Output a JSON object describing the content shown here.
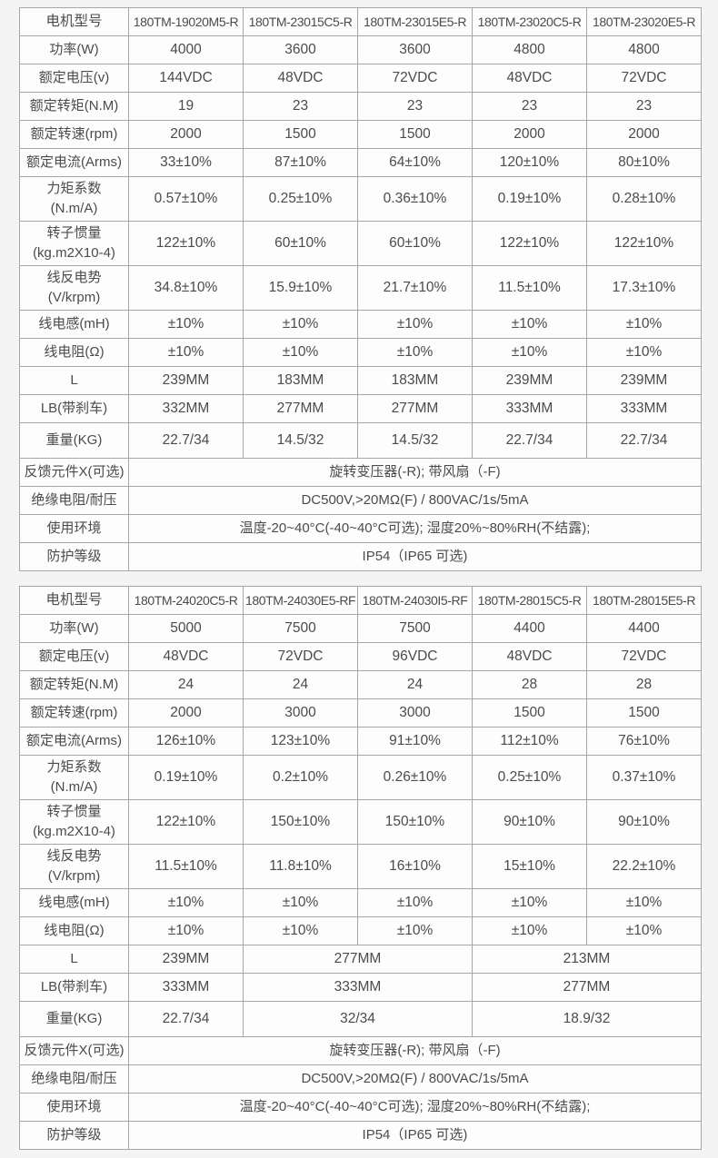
{
  "page": {
    "background_color": "#f4f4f5",
    "table_background_color": "#fdfdfd",
    "border_color": "#a6a6a6",
    "text_color": "#4b4b4b"
  },
  "tables": [
    {
      "header": {
        "label": "电机型号",
        "models": [
          "180TM-19020M5-R",
          "180TM-23015C5-R",
          "180TM-23015E5-R",
          "180TM-23020C5-R",
          "180TM-23020E5-R"
        ]
      },
      "rows": [
        {
          "label": "功率(W)",
          "cells": [
            "4000",
            "3600",
            "3600",
            "4800",
            "4800"
          ]
        },
        {
          "label": "额定电压(v)",
          "cells": [
            "144VDC",
            "48VDC",
            "72VDC",
            "48VDC",
            "72VDC"
          ]
        },
        {
          "label": "额定转矩(N.M)",
          "cells": [
            "19",
            "23",
            "23",
            "23",
            "23"
          ]
        },
        {
          "label": "额定转速(rpm)",
          "cells": [
            "2000",
            "1500",
            "1500",
            "2000",
            "2000"
          ]
        },
        {
          "label": "额定电流(Arms)",
          "cells": [
            "33±10%",
            "87±10%",
            "64±10%",
            "120±10%",
            "80±10%"
          ]
        },
        {
          "label": "力矩系数\n(N.m/A)",
          "cells": [
            "0.57±10%",
            "0.25±10%",
            "0.36±10%",
            "0.19±10%",
            "0.28±10%"
          ]
        },
        {
          "label": "转子惯量\n(kg.m2X10-4)",
          "cells": [
            "122±10%",
            "60±10%",
            "60±10%",
            "122±10%",
            "122±10%"
          ]
        },
        {
          "label": "线反电势\n(V/krpm)",
          "cells": [
            "34.8±10%",
            "15.9±10%",
            "21.7±10%",
            "11.5±10%",
            "17.3±10%"
          ]
        },
        {
          "label": "线电感(mH)",
          "cells": [
            "±10%",
            "±10%",
            "±10%",
            "±10%",
            "±10%"
          ]
        },
        {
          "label": "线电阻(Ω)",
          "cells": [
            "±10%",
            "±10%",
            "±10%",
            "±10%",
            "±10%"
          ]
        },
        {
          "label": "L",
          "cells": [
            "239MM",
            "183MM",
            "183MM",
            "239MM",
            "239MM"
          ]
        },
        {
          "label": "LB(带刹车)",
          "cells": [
            "332MM",
            "277MM",
            "277MM",
            "333MM",
            "333MM"
          ]
        },
        {
          "label": "重量(KG)",
          "h": 39,
          "cells": [
            "22.7/34",
            "14.5/32",
            "14.5/32",
            "22.7/34",
            "22.7/34"
          ]
        }
      ],
      "footer_rows": [
        {
          "label": "反馈元件X(可选)",
          "value": "旋转变压器(-R); 带风扇（-F)"
        },
        {
          "label": "绝缘电阻/耐压",
          "value": "DC500V,>20MΩ(F) / 800VAC/1s/5mA"
        },
        {
          "label": "使用环境",
          "value": "温度-20~40°C(-40~40°C可选); 湿度20%~80%RH(不结露);"
        },
        {
          "label": "防护等级",
          "value": "IP54（IP65 可选)"
        }
      ]
    },
    {
      "header": {
        "label": "电机型号",
        "models": [
          "180TM-24020C5-R",
          "180TM-24030E5-RF",
          "180TM-24030I5-RF",
          "180TM-28015C5-R",
          "180TM-28015E5-R"
        ]
      },
      "rows": [
        {
          "label": "功率(W)",
          "cells": [
            "5000",
            "7500",
            "7500",
            "4400",
            "4400"
          ]
        },
        {
          "label": "额定电压(v)",
          "cells": [
            "48VDC",
            "72VDC",
            "96VDC",
            "48VDC",
            "72VDC"
          ]
        },
        {
          "label": "额定转矩(N.M)",
          "cells": [
            "24",
            "24",
            "24",
            "28",
            "28"
          ]
        },
        {
          "label": "额定转速(rpm)",
          "cells": [
            "2000",
            "3000",
            "3000",
            "1500",
            "1500"
          ]
        },
        {
          "label": "额定电流(Arms)",
          "cells": [
            "126±10%",
            "123±10%",
            "91±10%",
            "112±10%",
            "76±10%"
          ]
        },
        {
          "label": "力矩系数\n(N.m/A)",
          "cells": [
            "0.19±10%",
            "0.2±10%",
            "0.26±10%",
            "0.25±10%",
            "0.37±10%"
          ]
        },
        {
          "label": "转子惯量\n(kg.m2X10-4)",
          "cells": [
            "122±10%",
            "150±10%",
            "150±10%",
            "90±10%",
            "90±10%"
          ]
        },
        {
          "label": "线反电势\n(V/krpm)",
          "cells": [
            "11.5±10%",
            "11.8±10%",
            "16±10%",
            "15±10%",
            "22.2±10%"
          ]
        },
        {
          "label": "线电感(mH)",
          "cells": [
            "±10%",
            "±10%",
            "±10%",
            "±10%",
            "±10%"
          ]
        },
        {
          "label": "线电阻(Ω)",
          "cells": [
            "±10%",
            "±10%",
            "±10%",
            "±10%",
            "±10%"
          ]
        },
        {
          "label": "L",
          "cells": [
            {
              "text": "239MM",
              "span": 1
            },
            {
              "text": "277MM",
              "span": 2
            },
            {
              "text": "213MM",
              "span": 2
            }
          ]
        },
        {
          "label": "LB(带刹车)",
          "cells": [
            {
              "text": "333MM",
              "span": 1
            },
            {
              "text": "333MM",
              "span": 2
            },
            {
              "text": "277MM",
              "span": 2
            }
          ]
        },
        {
          "label": "重量(KG)",
          "h": 39,
          "cells": [
            {
              "text": "22.7/34",
              "span": 1
            },
            {
              "text": "32/34",
              "span": 2
            },
            {
              "text": "18.9/32",
              "span": 2
            }
          ]
        }
      ],
      "footer_rows": [
        {
          "label": "反馈元件X(可选)",
          "value": "旋转变压器(-R); 带风扇（-F)"
        },
        {
          "label": "绝缘电阻/耐压",
          "value": "DC500V,>20MΩ(F) / 800VAC/1s/5mA"
        },
        {
          "label": "使用环境",
          "value": "温度-20~40°C(-40~40°C可选); 湿度20%~80%RH(不结露);"
        },
        {
          "label": "防护等级",
          "value": "IP54（IP65 可选)"
        }
      ]
    }
  ]
}
